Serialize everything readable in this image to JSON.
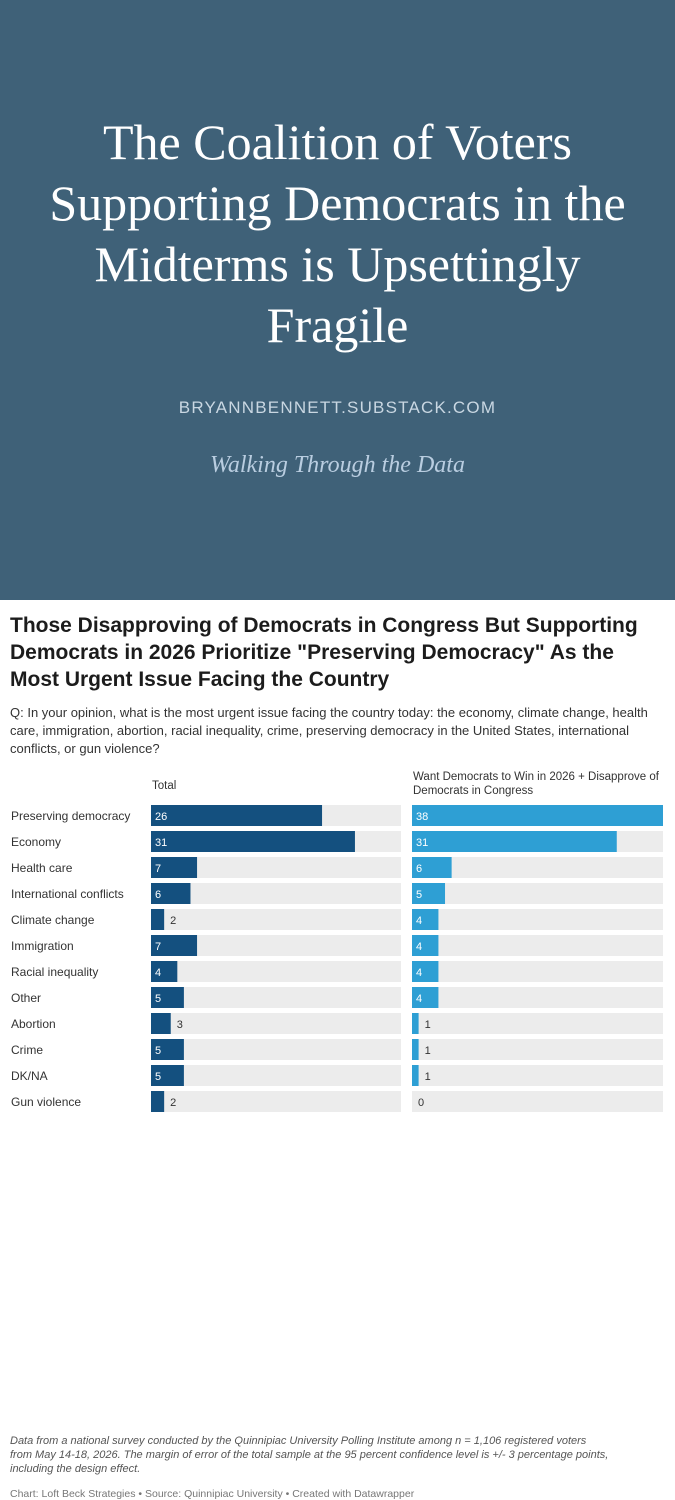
{
  "post": {
    "title": "The Coalition of Voters Supporting Democrats in the Midterms is Upsettingly Fragile",
    "site": "BRYANNBENNETT.SUBSTACK.COM",
    "tagline": "Walking Through the Data"
  },
  "chart_data": {
    "type": "bar",
    "title": "Those Disapproving of Democrats in Congress But Supporting Democrats in 2026 Prioritize \"Preserving Democracy\" As the Most Urgent Issue Facing the Country",
    "question": "Q: In your opinion, what is the most urgent issue facing the country today: the economy, climate change, health care, immigration, abortion, racial inequality, crime, preserving democracy in the United States, international conflicts, or gun violence?",
    "categories": [
      "Preserving democracy",
      "Economy",
      "Health care",
      "International conflicts",
      "Climate change",
      "Immigration",
      "Racial inequality",
      "Other",
      "Abortion",
      "Crime",
      "DK/NA",
      "Gun violence"
    ],
    "series": [
      {
        "name": "Total",
        "values": [
          26,
          31,
          7,
          6,
          2,
          7,
          4,
          5,
          3,
          5,
          5,
          2
        ],
        "color": "#14507f"
      },
      {
        "name": "Want Democrats to Win in 2026 + Disapprove of Democrats in Congress",
        "values": [
          38,
          31,
          6,
          5,
          4,
          4,
          4,
          4,
          1,
          1,
          1,
          0
        ],
        "color": "#2e9fd4"
      }
    ],
    "max": 38,
    "note": "Data from a national survey conducted by the Quinnipiac University Polling Institute among n = 1,106 registered voters from May 14-18, 2026. The margin of error of the total sample at the 95 percent confidence level is +/- 3 percentage points, including the design effect.",
    "source": "Chart: Loft Beck Strategies • Source: Quinnipiac University • Created with Datawrapper"
  }
}
